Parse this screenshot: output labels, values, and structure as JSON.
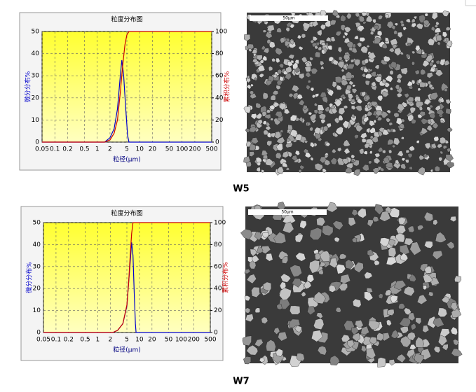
{
  "chart_data": [
    {
      "type": "line",
      "title": "粒度分布图",
      "x_label": "粒径(μm)",
      "y_label": "微分分布%",
      "y2_label": "累积分布%",
      "xscale": "log",
      "xlim": [
        0.05,
        500
      ],
      "xticks": [
        0.05,
        0.1,
        0.2,
        0.5,
        1,
        2,
        5,
        10,
        20,
        50,
        100,
        200,
        500
      ],
      "ylim": [
        0,
        50
      ],
      "yticks": [
        0,
        10,
        20,
        30,
        40,
        50
      ],
      "y2lim": [
        0,
        100
      ],
      "y2ticks": [
        0,
        20,
        40,
        60,
        80,
        100
      ],
      "grid": true,
      "series": [
        {
          "color": "#0000cc",
          "x": [
            0.05,
            1.5,
            2,
            2.5,
            3,
            3.5,
            3.8,
            4.2,
            4.7,
            5.2,
            5.6,
            500
          ],
          "values": [
            0,
            0,
            2,
            6,
            15,
            30,
            37,
            30,
            15,
            3,
            0,
            0
          ]
        },
        {
          "color": "#cc0000",
          "axis": "y2",
          "x": [
            0.05,
            1.5,
            2,
            2.5,
            3,
            3.5,
            4,
            4.5,
            5,
            5.6,
            500
          ],
          "values": [
            0,
            0,
            2,
            8,
            20,
            45,
            70,
            88,
            97,
            100,
            100
          ]
        }
      ]
    },
    {
      "type": "line",
      "title": "粒度分布图",
      "x_label": "粒径(μm)",
      "y_label": "微分分布%",
      "y2_label": "累积分布%",
      "xscale": "log",
      "xlim": [
        0.05,
        500
      ],
      "xticks": [
        0.05,
        0.1,
        0.2,
        0.5,
        1,
        2,
        5,
        10,
        20,
        50,
        100,
        200,
        500
      ],
      "ylim": [
        0,
        50
      ],
      "yticks": [
        0,
        10,
        20,
        30,
        40,
        50
      ],
      "y2lim": [
        0,
        100
      ],
      "y2ticks": [
        0,
        20,
        40,
        60,
        80,
        100
      ],
      "grid": true,
      "series": [
        {
          "color": "#0000cc",
          "x": [
            0.05,
            2.3,
            3,
            4,
            5,
            6,
            6.5,
            7,
            7.5,
            8,
            8.3,
            500
          ],
          "values": [
            0,
            0,
            1,
            4,
            12,
            32,
            41,
            35,
            18,
            4,
            0,
            0
          ]
        },
        {
          "color": "#cc0000",
          "axis": "y2",
          "x": [
            0.05,
            2.3,
            3,
            4,
            5,
            5.5,
            6,
            6.5,
            7,
            500
          ],
          "values": [
            0,
            0,
            2,
            8,
            25,
            45,
            70,
            90,
            100,
            100
          ]
        }
      ]
    }
  ],
  "images": [
    {
      "scale_bar": "50μm",
      "caption": "W5"
    },
    {
      "scale_bar": "50μm",
      "caption": "W7"
    }
  ]
}
